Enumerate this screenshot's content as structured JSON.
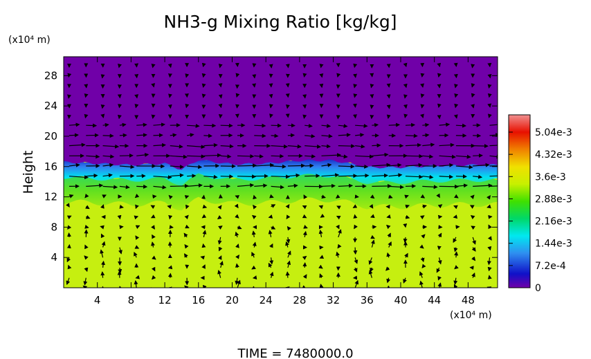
{
  "chart_data": {
    "type": "heatmap",
    "title": "NH3-g Mixing Ratio [kg/kg]",
    "ylabel": "Height",
    "y_unit": "(x10⁴ m)",
    "x_unit": "(x10⁴ m)",
    "time_label": "TIME = 7480000.0",
    "xlim": [
      0,
      51.5
    ],
    "ylim": [
      0,
      30.5
    ],
    "x_ticks": [
      "4",
      "8",
      "12",
      "16",
      "20",
      "24",
      "28",
      "32",
      "36",
      "40",
      "44",
      "48"
    ],
    "y_ticks": [
      "4",
      "8",
      "12",
      "16",
      "20",
      "24",
      "28"
    ],
    "x_tick_values": [
      4,
      8,
      12,
      16,
      20,
      24,
      28,
      32,
      36,
      40,
      44,
      48
    ],
    "y_tick_values": [
      4,
      8,
      12,
      16,
      20,
      24,
      28
    ],
    "colorbar": {
      "min": 0,
      "max": 0.0056,
      "labels": [
        "5.04e-3",
        "4.32e-3",
        "3.6e-3",
        "2.88e-3",
        "2.16e-3",
        "1.44e-3",
        "7.2e-4",
        "0"
      ],
      "label_values": [
        0.00504,
        0.00432,
        0.0036,
        0.00288,
        0.00216,
        0.00144,
        0.00072,
        0
      ]
    },
    "layers": [
      {
        "name": "upper",
        "y_from": 16.5,
        "y_to": 30.5,
        "value": 0
      },
      {
        "name": "transition",
        "y_from": 15.0,
        "y_to": 17.0,
        "value": 0.0009
      },
      {
        "name": "mid",
        "y_from": 12.0,
        "y_to": 15.5,
        "value": 0.0026
      },
      {
        "name": "lower",
        "y_from": 0,
        "y_to": 12.0,
        "value": 0.0033
      }
    ],
    "interface_profile": {
      "x": [
        0,
        4,
        8,
        12,
        14,
        16,
        18,
        20,
        24,
        28,
        32,
        34,
        36,
        40,
        44,
        48,
        51.5
      ],
      "y": [
        16.6,
        16.4,
        16.2,
        16.4,
        15.6,
        16.9,
        16.6,
        16.3,
        16.4,
        16.8,
        16.8,
        16.4,
        15.9,
        15.9,
        16.1,
        16.2,
        16.2
      ]
    },
    "grid": false,
    "legend": "colorbar-right"
  }
}
